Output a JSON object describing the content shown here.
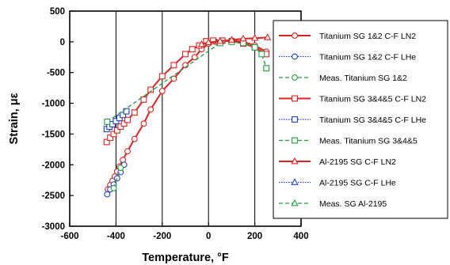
{
  "chart_data": {
    "type": "line",
    "title": "",
    "xlabel": "Temperature, °F",
    "ylabel": "Strain, με",
    "xlim": [
      -600,
      400
    ],
    "ylim": [
      -3000,
      500
    ],
    "x_ticks": [
      "-600",
      "-400",
      "-200",
      "0",
      "200",
      "400"
    ],
    "y_ticks": [
      "500",
      "0",
      "-500",
      "-1000",
      "-1500",
      "-2000",
      "-2500",
      "-3000"
    ],
    "grid": "x-only",
    "legend_position": "right",
    "series": [
      {
        "name": "Titanium SG 1&2 C-F LN2",
        "color": "#e02020",
        "line": "solid",
        "marker": "circle",
        "x": [
          -435,
          -425,
          -415,
          -405,
          -395,
          -385,
          -370,
          -350,
          -320,
          -280,
          -250,
          -200,
          -150,
          -100,
          -60,
          -30,
          0,
          30,
          60,
          100,
          150,
          200,
          250
        ],
        "y": [
          -2400,
          -2330,
          -2260,
          -2190,
          -2110,
          -2030,
          -1920,
          -1780,
          -1580,
          -1330,
          -1100,
          -800,
          -600,
          -380,
          -250,
          -120,
          -30,
          0,
          10,
          20,
          0,
          -60,
          -160
        ]
      },
      {
        "name": "Titanium SG 1&2 C-F LHe",
        "color": "#2040d0",
        "line": "dotted",
        "marker": "circle",
        "x": [
          -438,
          -425,
          -410,
          -395,
          -380,
          -365
        ],
        "y": [
          -2480,
          -2400,
          -2320,
          -2220,
          -2120,
          -2000
        ]
      },
      {
        "name": "Meas. Titanium SG 1&2",
        "color": "#20a040",
        "line": "dashed",
        "marker": "circle",
        "x": [
          -410,
          -380
        ],
        "y": [
          -2380,
          -2050
        ]
      },
      {
        "name": "Titanium SG 3&4&5 C-F LN2",
        "color": "#e02020",
        "line": "solid",
        "marker": "square",
        "x": [
          -440,
          -425,
          -410,
          -395,
          -380,
          -365,
          -350,
          -320,
          -280,
          -250,
          -200,
          -150,
          -100,
          -70,
          -40,
          -10,
          20,
          60,
          100,
          150,
          200,
          250
        ],
        "y": [
          -1630,
          -1560,
          -1500,
          -1440,
          -1380,
          -1330,
          -1270,
          -1150,
          -940,
          -780,
          -560,
          -380,
          -200,
          -120,
          -60,
          10,
          20,
          20,
          10,
          -30,
          -90,
          -200
        ]
      },
      {
        "name": "Titanium SG 3&4&5 C-F LHe",
        "color": "#2040d0",
        "line": "dotted",
        "marker": "square",
        "x": [
          -440,
          -428,
          -415,
          -400,
          -385,
          -370,
          -355
        ],
        "y": [
          -1420,
          -1380,
          -1340,
          -1290,
          -1240,
          -1190,
          -1130
        ]
      },
      {
        "name": "Meas. Titanium SG 3&4&5",
        "color": "#20a040",
        "line": "dashed",
        "marker": "square",
        "x": [
          -438,
          50,
          100,
          150,
          200,
          230,
          250
        ],
        "y": [
          -1300,
          -20,
          0,
          -20,
          -90,
          -200,
          -430
        ]
      },
      {
        "name": "Al-2195 SG C-F LN2",
        "color": "#e02020",
        "line": "solid",
        "marker": "triangle",
        "x": [
          -30,
          0,
          50,
          100,
          150,
          200,
          255
        ],
        "y": [
          -40,
          -10,
          10,
          30,
          50,
          60,
          70
        ]
      },
      {
        "name": "Al-2195 SG C-F LHe",
        "color": "#2040d0",
        "line": "dotted",
        "marker": "triangle",
        "x": [],
        "y": []
      },
      {
        "name": "Meas. SG Al-2195",
        "color": "#20a040",
        "line": "dashed",
        "marker": "triangle",
        "x": [],
        "y": []
      }
    ]
  }
}
